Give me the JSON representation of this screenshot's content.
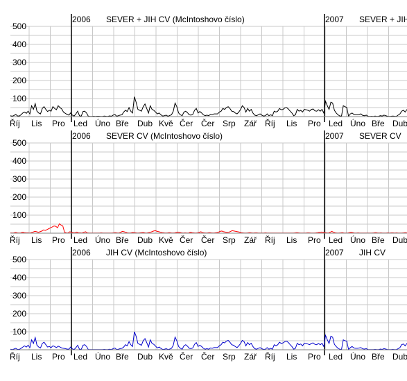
{
  "chart_data": [
    {
      "type": "line",
      "title_year_left": "2006",
      "title_left": "SEVER + JIH   CV  (McIntoshovo číslo)",
      "title_year_right": "2007",
      "title_right": "SEVER + JIH",
      "ylim": [
        0,
        500
      ],
      "yticks": [
        "500",
        "400",
        "300",
        "200",
        "100"
      ],
      "grid": true,
      "months": [
        "Říj",
        "Lis",
        "Pro",
        "Led",
        "Úno",
        "Bře",
        "Dub",
        "Kvě",
        "Čer",
        "Čer",
        "Srp",
        "Zář",
        "Říj",
        "Lis",
        "Pro",
        "Led",
        "Úno",
        "Bře",
        "Dub"
      ],
      "series": [
        {
          "color": "#000000",
          "values": [
            5,
            2,
            6,
            12,
            4,
            3,
            10,
            20,
            25,
            18,
            30,
            15,
            60,
            40,
            72,
            30,
            20,
            15,
            45,
            55,
            40,
            28,
            35,
            30,
            55,
            45,
            38,
            60,
            50,
            42,
            25,
            18,
            12,
            8,
            20,
            8,
            3,
            15,
            30,
            5,
            2,
            28,
            30,
            20,
            2,
            1,
            1,
            2,
            1,
            2,
            2,
            1,
            1,
            3,
            2,
            1,
            4,
            2,
            8,
            12,
            2,
            5,
            8,
            10,
            25,
            35,
            28,
            50,
            30,
            20,
            110,
            80,
            40,
            35,
            30,
            55,
            70,
            45,
            20,
            60,
            40,
            35,
            25,
            15,
            20,
            10,
            3,
            5,
            8,
            2,
            6,
            10,
            30,
            75,
            55,
            20,
            10,
            5,
            25,
            30,
            22,
            10,
            8,
            12,
            35,
            45,
            20,
            28,
            20,
            10,
            5,
            8,
            5,
            12,
            10,
            15,
            15,
            15,
            25,
            30,
            45,
            40,
            50,
            55,
            45,
            30,
            28,
            20,
            15,
            25,
            40,
            60,
            50,
            25,
            45,
            30,
            40,
            20,
            8,
            5,
            10,
            15,
            8,
            3,
            5,
            15,
            5,
            10,
            5,
            30,
            25,
            30,
            45,
            38,
            40,
            48,
            50,
            42,
            30,
            20,
            5,
            10,
            40,
            30,
            35,
            25,
            40,
            38,
            35,
            30,
            40,
            42,
            32,
            30,
            38,
            30,
            40,
            20,
            85,
            60,
            40,
            80,
            75,
            35,
            20,
            10,
            4,
            2,
            60,
            55,
            50,
            2,
            15,
            20,
            12,
            10,
            10,
            12,
            15,
            6,
            5,
            8,
            2,
            1,
            2,
            1,
            3,
            1,
            2,
            5,
            3,
            8,
            5,
            2,
            1,
            2,
            3,
            2,
            1,
            8,
            15,
            30,
            35,
            25,
            40
          ]
        }
      ]
    },
    {
      "type": "line",
      "title_year_left": "2006",
      "title_left": "SEVER   CV  (McIntoshovo číslo)",
      "title_year_right": "2007",
      "title_right": "SEVER   CV",
      "ylim": [
        0,
        500
      ],
      "yticks": [
        "500",
        "400",
        "300",
        "200",
        "100"
      ],
      "grid": true,
      "months": [
        "Říj",
        "Lis",
        "Pro",
        "Led",
        "Úno",
        "Bře",
        "Dub",
        "Kvě",
        "Čer",
        "Čer",
        "Srp",
        "Zář",
        "Říj",
        "Lis",
        "Pro",
        "Led",
        "Úno",
        "Bře",
        "Dub"
      ],
      "series": [
        {
          "color": "#ff0000",
          "values": [
            2,
            1,
            2,
            4,
            2,
            1,
            2,
            5,
            3,
            2,
            2,
            1,
            3,
            6,
            10,
            8,
            5,
            8,
            12,
            18,
            15,
            20,
            25,
            30,
            35,
            40,
            38,
            30,
            52,
            45,
            40,
            5,
            2,
            1,
            8,
            5,
            3,
            2,
            6,
            2,
            2,
            1,
            5,
            8,
            2,
            1,
            1,
            1,
            1,
            1,
            1,
            1,
            2,
            1,
            1,
            1,
            1,
            1,
            1,
            2,
            3,
            2,
            1,
            4,
            10,
            8,
            5,
            2,
            1,
            2,
            4,
            3,
            2,
            1,
            2,
            3,
            4,
            2,
            1,
            3,
            5,
            8,
            12,
            14,
            10,
            8,
            5,
            3,
            2,
            1,
            2,
            3,
            2,
            1,
            2,
            4,
            6,
            4,
            2,
            1,
            2,
            1,
            1,
            5,
            3,
            2,
            1,
            2,
            4,
            8,
            3,
            2,
            1,
            2,
            3,
            2,
            1,
            2,
            3,
            5,
            10,
            12,
            8,
            6,
            4,
            5,
            10,
            14,
            12,
            10,
            8,
            6,
            3,
            2,
            1,
            1,
            2,
            3,
            2,
            1,
            2,
            2,
            1,
            1,
            1,
            1,
            2,
            1,
            1,
            1,
            1,
            1,
            1,
            1,
            1,
            1,
            1,
            1,
            1,
            1,
            1,
            1,
            1,
            2,
            3,
            2,
            1,
            1,
            1,
            1,
            2,
            2,
            1,
            1,
            1,
            2,
            3,
            5,
            6,
            5,
            3,
            2,
            1,
            5,
            10,
            5,
            2,
            1,
            1,
            2,
            3,
            1,
            1,
            1,
            3,
            5,
            3,
            1,
            1,
            2,
            1,
            1,
            1,
            1,
            1,
            1,
            1,
            1,
            2,
            3,
            2,
            1,
            2,
            1,
            1,
            1,
            2,
            1,
            2,
            2,
            1,
            2,
            1,
            1,
            1,
            2,
            3,
            2
          ]
        }
      ]
    },
    {
      "type": "line",
      "title_year_left": "2006",
      "title_left": "JIH   CV  (McIntoshovo číslo)",
      "title_year_right": "2007",
      "title_right": "JIH   CV",
      "ylim": [
        0,
        500
      ],
      "yticks": [
        "500",
        "400",
        "300",
        "200",
        "100"
      ],
      "grid": true,
      "months": [
        "Říj",
        "Lis",
        "Pro",
        "Led",
        "Úno",
        "Bře",
        "Dub",
        "Kvě",
        "Čer",
        "Čer",
        "Srp",
        "Zář",
        "Říj",
        "Lis",
        "Pro",
        "Led",
        "Úno",
        "Bře",
        "Dub"
      ],
      "series": [
        {
          "color": "#0000cc",
          "values": [
            3,
            1,
            4,
            8,
            2,
            2,
            8,
            15,
            22,
            15,
            25,
            12,
            55,
            35,
            68,
            25,
            15,
            10,
            35,
            42,
            28,
            15,
            18,
            12,
            22,
            18,
            12,
            20,
            15,
            10,
            8,
            6,
            4,
            3,
            15,
            5,
            1,
            12,
            25,
            3,
            1,
            25,
            28,
            18,
            1,
            1,
            1,
            1,
            1,
            1,
            1,
            1,
            1,
            2,
            1,
            1,
            3,
            1,
            6,
            10,
            1,
            3,
            6,
            8,
            15,
            28,
            22,
            45,
            28,
            18,
            100,
            75,
            35,
            30,
            25,
            50,
            62,
            40,
            15,
            55,
            35,
            30,
            20,
            10,
            15,
            8,
            2,
            3,
            6,
            1,
            4,
            8,
            25,
            70,
            50,
            18,
            8,
            3,
            22,
            28,
            20,
            8,
            6,
            10,
            30,
            40,
            18,
            25,
            18,
            8,
            3,
            6,
            3,
            10,
            8,
            12,
            12,
            12,
            22,
            28,
            42,
            38,
            48,
            52,
            42,
            28,
            25,
            18,
            12,
            22,
            35,
            52,
            45,
            22,
            40,
            28,
            36,
            18,
            6,
            3,
            8,
            12,
            6,
            2,
            3,
            12,
            3,
            8,
            3,
            28,
            22,
            28,
            42,
            35,
            38,
            45,
            48,
            40,
            28,
            18,
            3,
            8,
            36,
            28,
            32,
            22,
            36,
            35,
            32,
            28,
            36,
            38,
            30,
            28,
            35,
            28,
            36,
            18,
            80,
            55,
            35,
            75,
            70,
            30,
            18,
            8,
            3,
            1,
            55,
            50,
            48,
            1,
            12,
            18,
            10,
            8,
            8,
            10,
            12,
            5,
            4,
            6,
            1,
            1,
            1,
            1,
            2,
            1,
            1,
            4,
            2,
            6,
            4,
            1,
            1,
            1,
            2,
            1,
            1,
            6,
            12,
            28,
            32,
            22,
            36
          ]
        }
      ]
    }
  ]
}
